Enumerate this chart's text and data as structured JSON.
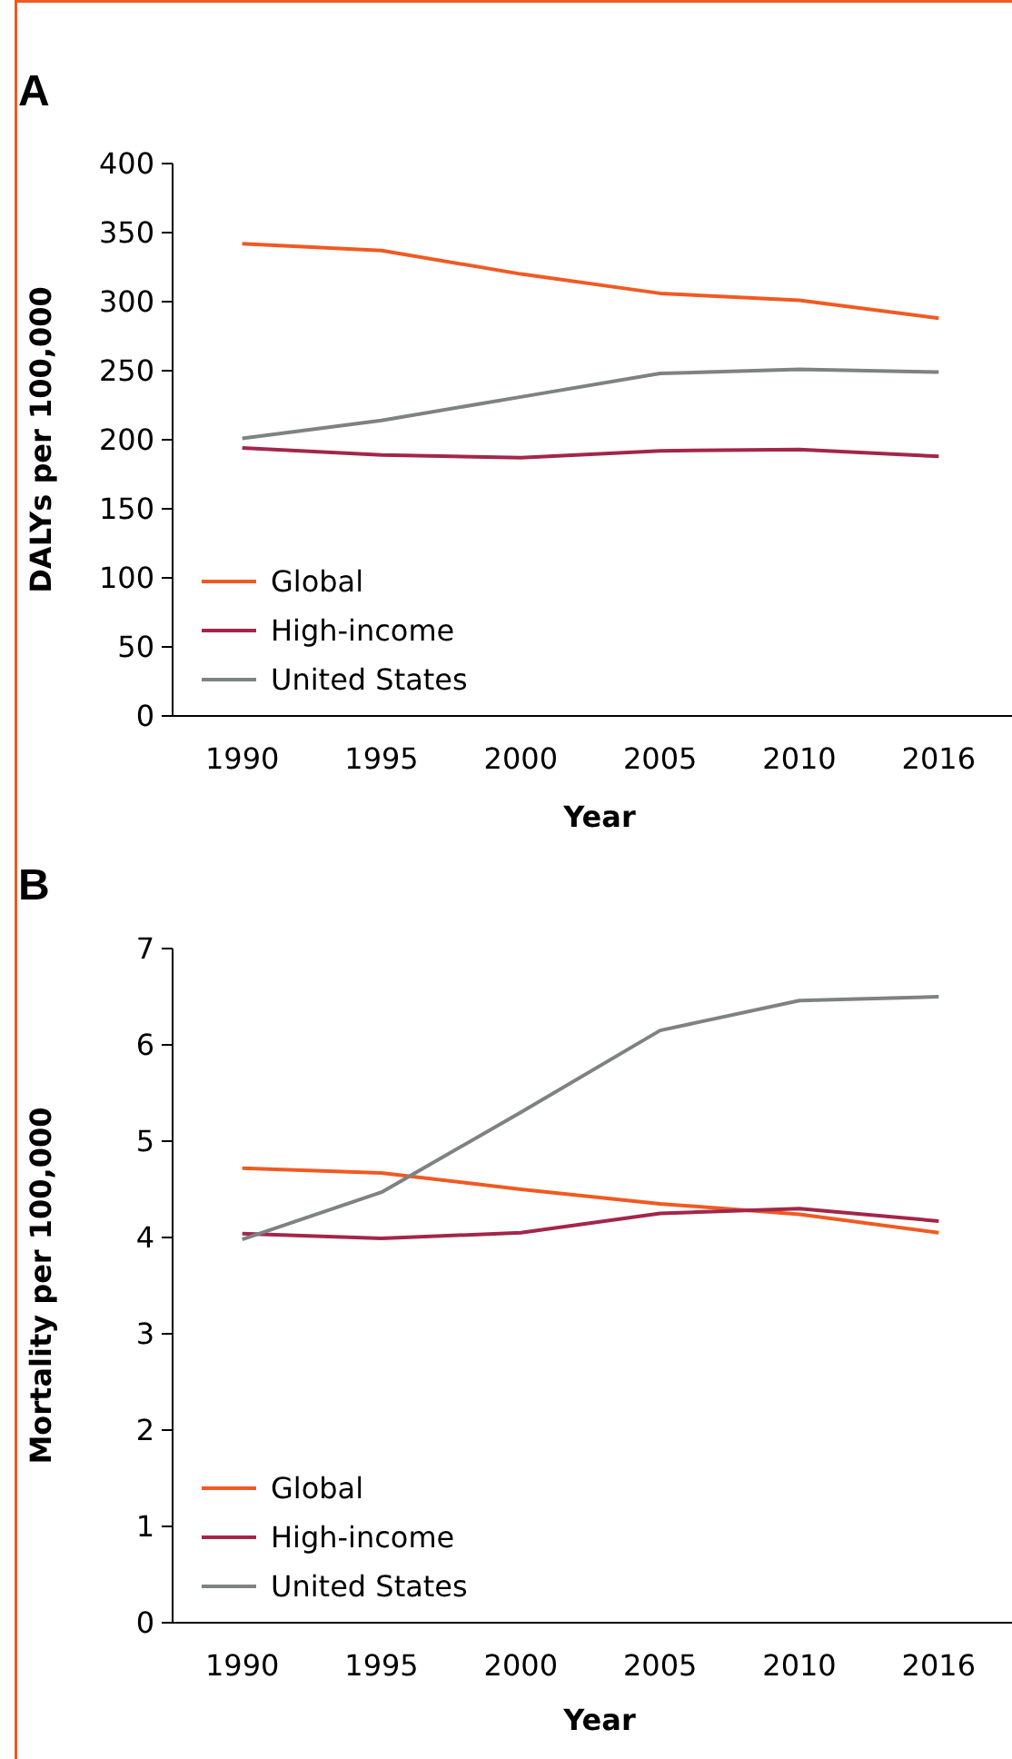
{
  "chart_data": [
    {
      "type": "line",
      "title": "A",
      "xlabel": "Year",
      "ylabel": "DALYs per 100,000",
      "categories": [
        "1990",
        "1995",
        "2000",
        "2005",
        "2010",
        "2016"
      ],
      "ylim": [
        0,
        400
      ],
      "yticks": [
        0,
        50,
        100,
        150,
        200,
        250,
        300,
        350,
        400
      ],
      "legend": "bottom left",
      "grid": false,
      "series": [
        {
          "name": "Global",
          "color": "#f05a22",
          "values": [
            342,
            337,
            320,
            306,
            301,
            288
          ]
        },
        {
          "name": "High-income",
          "color": "#a3264a",
          "values": [
            194,
            189,
            187,
            192,
            193,
            188
          ]
        },
        {
          "name": "United States",
          "color": "#7f8282",
          "values": [
            201,
            214,
            231,
            248,
            251,
            249
          ]
        }
      ]
    },
    {
      "type": "line",
      "title": "B",
      "xlabel": "Year",
      "ylabel": "Mortality per 100,000",
      "categories": [
        "1990",
        "1995",
        "2000",
        "2005",
        "2010",
        "2016"
      ],
      "ylim": [
        0,
        7
      ],
      "yticks": [
        0,
        1,
        2,
        3,
        4,
        5,
        6,
        7
      ],
      "legend": "bottom left",
      "grid": false,
      "series": [
        {
          "name": "Global",
          "color": "#f05a22",
          "values": [
            4.72,
            4.67,
            4.5,
            4.35,
            4.24,
            4.05
          ]
        },
        {
          "name": "High-income",
          "color": "#a3264a",
          "values": [
            4.04,
            3.99,
            4.05,
            4.25,
            4.3,
            4.17
          ]
        },
        {
          "name": "United States",
          "color": "#7f8282",
          "values": [
            3.98,
            4.47,
            5.3,
            6.15,
            6.46,
            6.5
          ]
        }
      ]
    }
  ]
}
